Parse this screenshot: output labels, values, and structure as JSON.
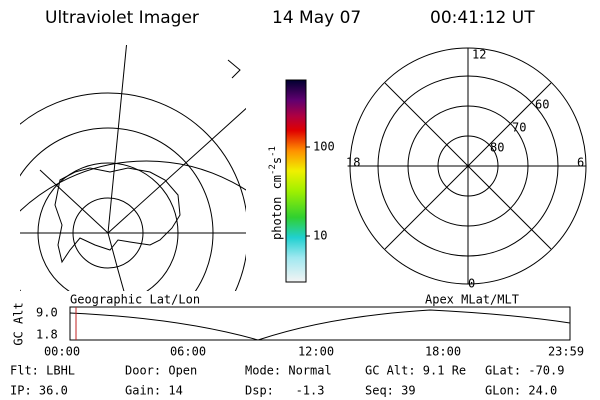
{
  "header": {
    "title": "Ultraviolet Imager",
    "date": "14 May 07",
    "time": "00:41:12 UT"
  },
  "colorbar": {
    "unit": "photon cm",
    "exp1": "-2",
    "unit2": "s",
    "exp2": "-1",
    "ticks": [
      "100",
      "10"
    ]
  },
  "maps": {
    "left_label": "Geographic Lat/Lon",
    "right_label": "Apex MLat/MLT",
    "mlt_labels": [
      "12",
      "18",
      "6",
      "0"
    ],
    "mlat_labels": [
      "60",
      "70",
      "80"
    ]
  },
  "timeline": {
    "ylabel": "GC Alt",
    "yticks": [
      "9.0",
      "1.8"
    ],
    "xticks": [
      "00:00",
      "06:00",
      "12:00",
      "18:00",
      "23:59"
    ]
  },
  "footer": {
    "rows": [
      [
        "Flt: LBHL",
        "Door: Open",
        "Mode: Normal",
        "GC Alt: 9.1 Re",
        "GLat: -70.9"
      ],
      [
        "IP: 36.0",
        "Gain: 14",
        "Dsp:   -1.3",
        "Seq: 39",
        "GLon: 24.0"
      ]
    ]
  }
}
